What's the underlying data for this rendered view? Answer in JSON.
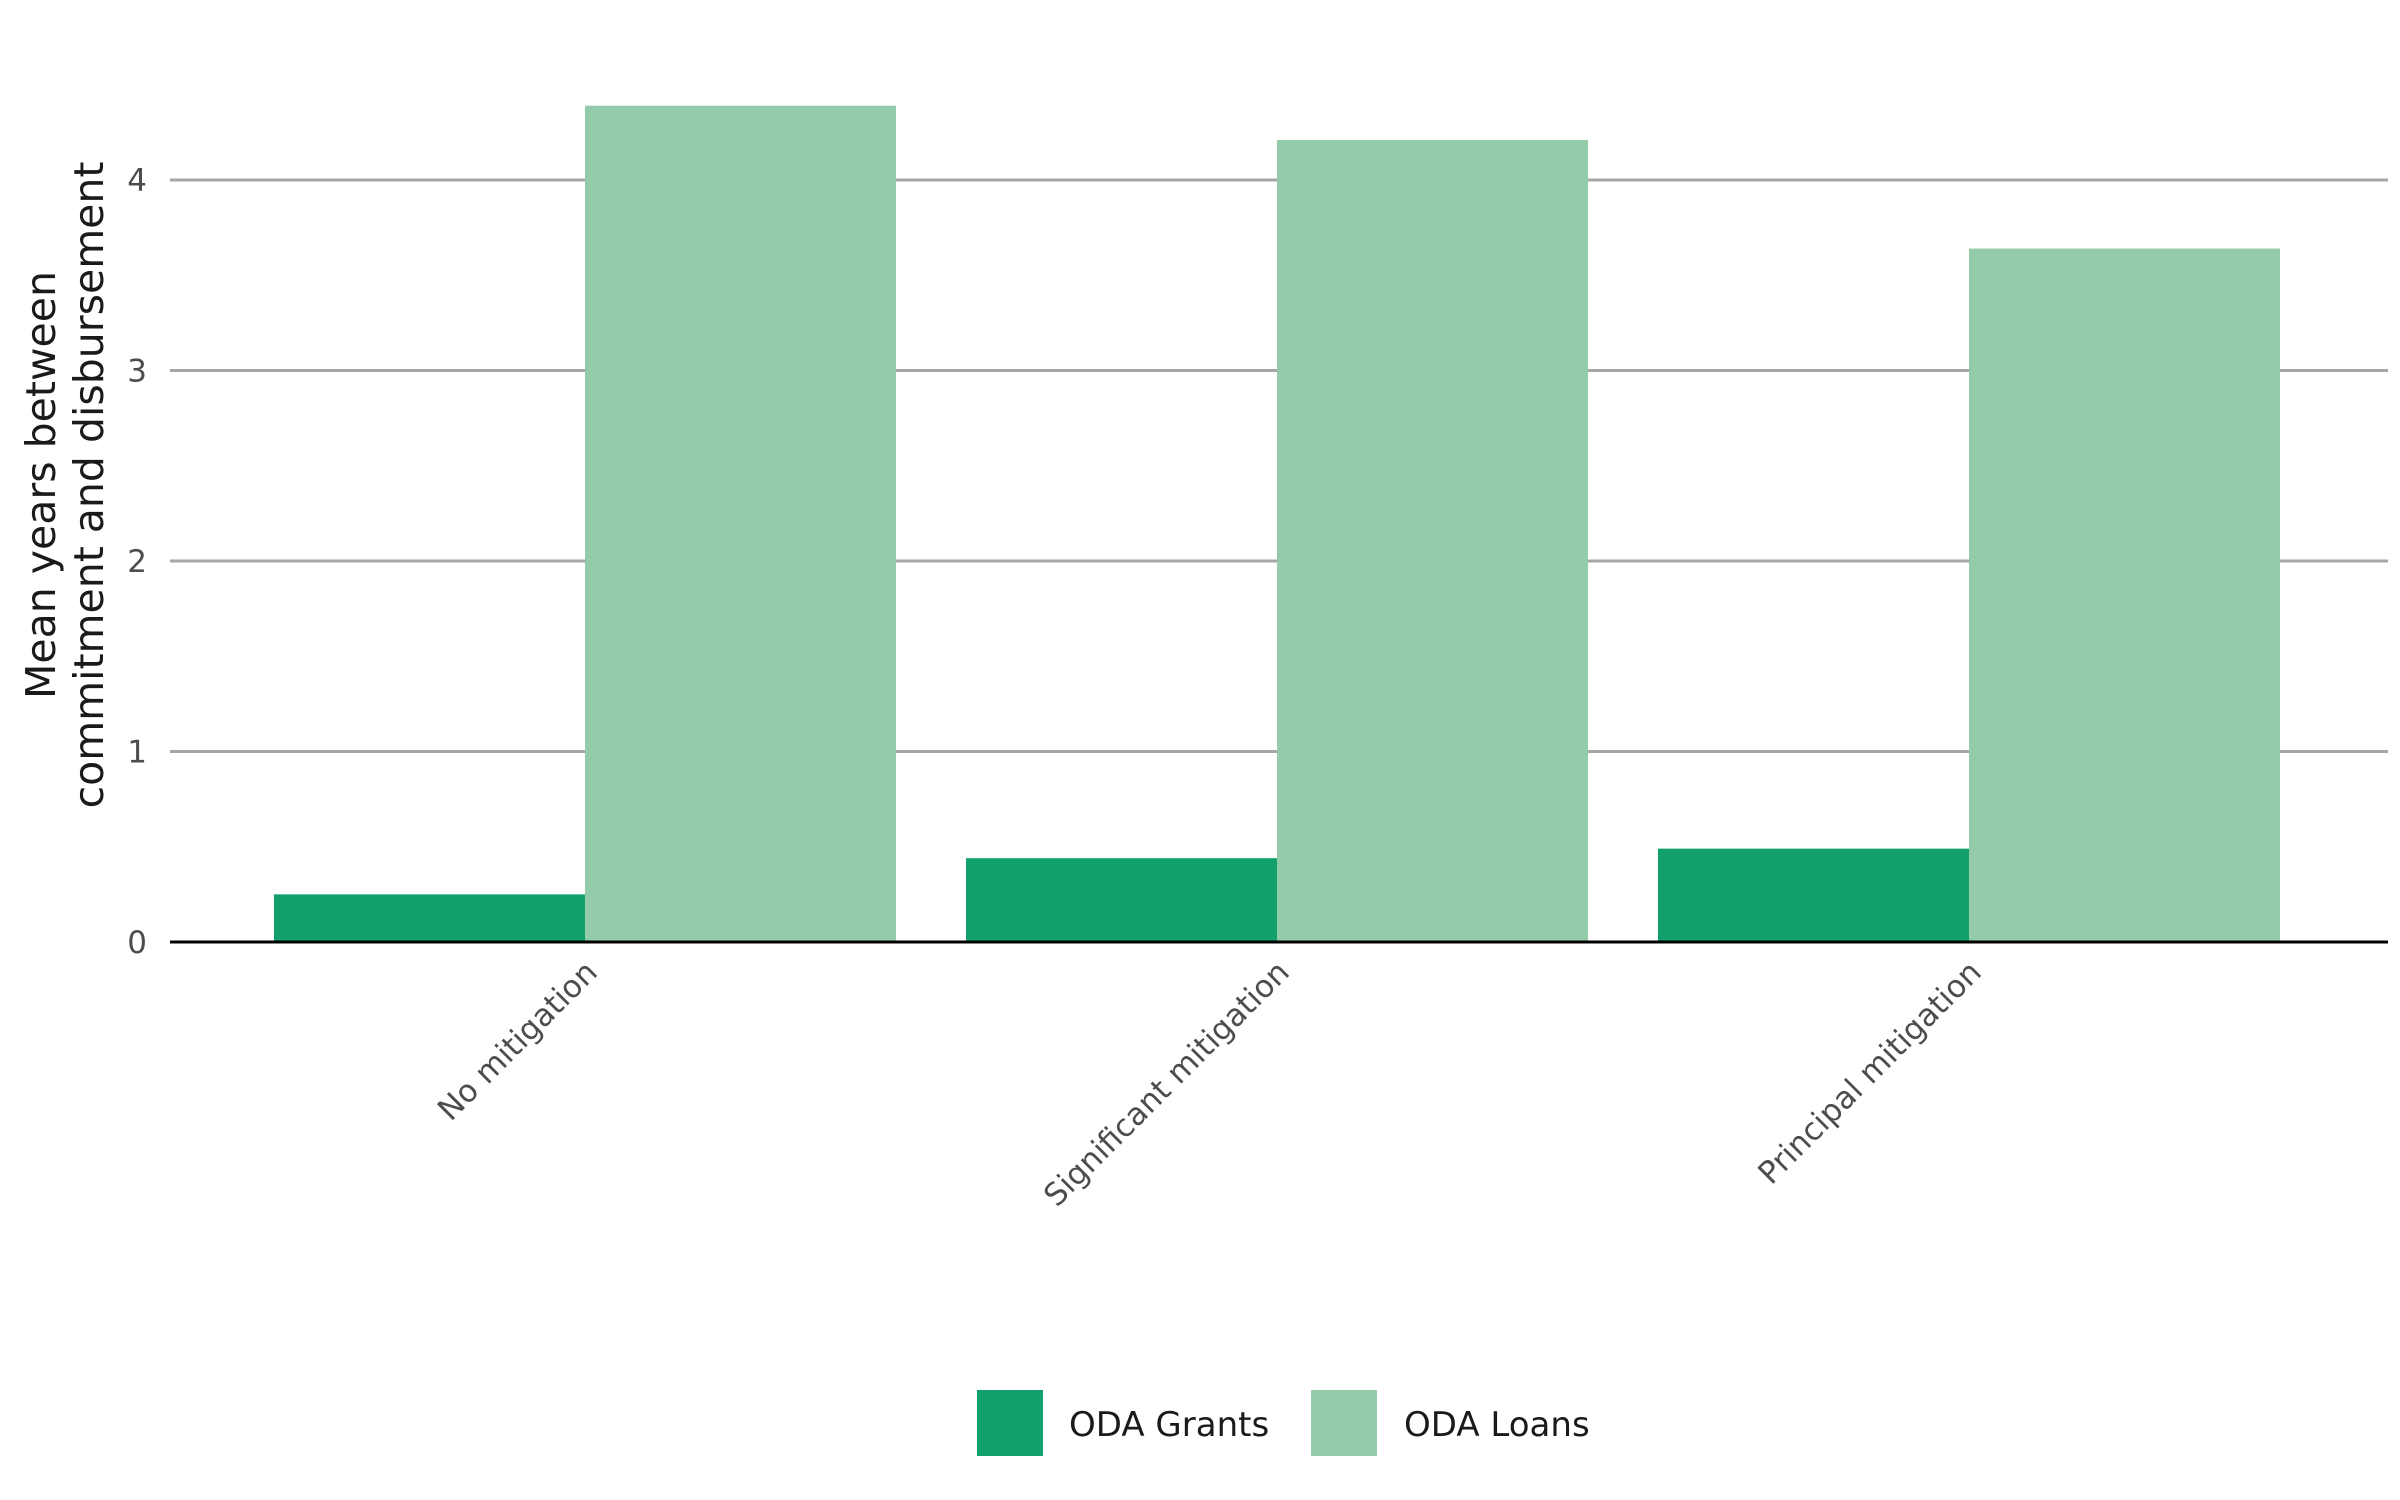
{
  "chart_data": {
    "type": "bar",
    "title": "",
    "xlabel": "",
    "ylabel": [
      "Mean years between",
      "commitment and disbursement"
    ],
    "categories": [
      "No mitigation",
      "Significant mitigation",
      "Principal mitigation"
    ],
    "series": [
      {
        "name": "ODA Grants",
        "color": "#12a06c",
        "values": [
          0.25,
          0.44,
          0.49
        ]
      },
      {
        "name": "ODA Loans",
        "color": "#94cbaa",
        "values": [
          4.39,
          4.21,
          3.64
        ]
      }
    ],
    "ylim": [
      0,
      4.4
    ],
    "yticks": [
      0,
      1,
      2,
      3,
      4
    ],
    "grid": true,
    "legend_position": "bottom"
  }
}
